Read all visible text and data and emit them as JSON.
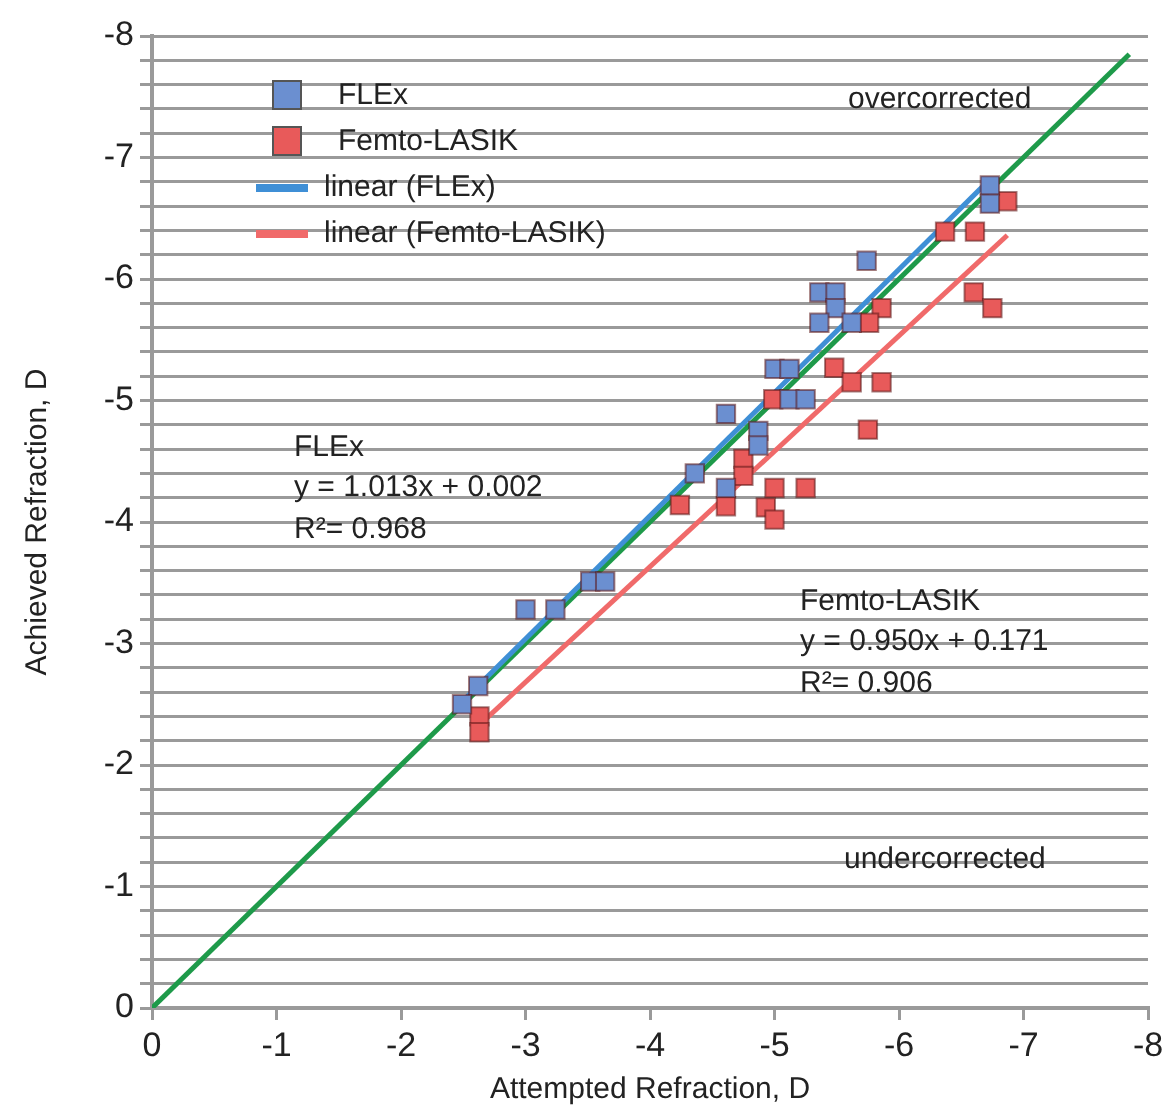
{
  "chart_data": {
    "type": "scatter",
    "xlabel": "Attempted Refraction, D",
    "ylabel": "Achieved Refraction, D",
    "xlim": [
      0,
      -8
    ],
    "xticks": [
      0,
      -1,
      -2,
      -3,
      -4,
      -5,
      -6,
      -7,
      -8
    ],
    "ylim": [
      0,
      -8
    ],
    "yticks": [
      0,
      {
        "value": -0.2,
        "label": null
      },
      {
        "value": -0.4,
        "label": null
      },
      {
        "value": -0.6,
        "label": null
      },
      {
        "value": -0.8,
        "label": null
      },
      -1,
      {
        "value": -1.2,
        "label": null
      },
      {
        "value": -1.4,
        "label": null
      },
      {
        "value": -1.6,
        "label": null
      },
      {
        "value": -1.8,
        "label": null
      },
      -2,
      {
        "value": -2.2,
        "label": null
      },
      {
        "value": -2.4,
        "label": null
      },
      {
        "value": -2.6,
        "label": null
      },
      {
        "value": -2.8,
        "label": null
      },
      -3,
      {
        "value": -3.2,
        "label": null
      },
      {
        "value": -3.4,
        "label": null
      },
      {
        "value": -3.6,
        "label": null
      },
      {
        "value": -3.8,
        "label": null
      },
      -4,
      {
        "value": -4.2,
        "label": null
      },
      {
        "value": -4.4,
        "label": null
      },
      {
        "value": -4.6,
        "label": null
      },
      {
        "value": -4.8,
        "label": null
      },
      -5,
      {
        "value": -5.2,
        "label": null
      },
      {
        "value": -5.4,
        "label": null
      },
      {
        "value": -5.6,
        "label": null
      },
      {
        "value": -5.8,
        "label": null
      },
      -6,
      {
        "value": -6.2,
        "label": null
      },
      {
        "value": -6.4,
        "label": null
      },
      {
        "value": -6.6,
        "label": null
      },
      {
        "value": -6.8,
        "label": null
      },
      -7,
      {
        "value": -7.2,
        "label": null
      },
      {
        "value": -7.4,
        "label": null
      },
      {
        "value": -7.6,
        "label": null
      },
      {
        "value": -7.8,
        "label": null
      },
      -8
    ],
    "grid": "y",
    "legend": "top left",
    "series": [
      {
        "name": "FLEx",
        "type": "scatter",
        "marker": "square",
        "color": "#6b8fd0",
        "x": [
          -6.73,
          -6.73,
          -5.74,
          -5.36,
          -5.49,
          -5.49,
          -5.36,
          -5.62,
          -5.0,
          -5.12,
          -5.12,
          -5.25,
          -4.61,
          -4.87,
          -4.87,
          -4.36,
          -4.61,
          -3.52,
          -3.64,
          -3.0,
          -3.24,
          -2.62,
          -2.49
        ],
        "values": [
          -6.77,
          -6.62,
          -6.15,
          -5.89,
          -5.89,
          -5.76,
          -5.64,
          -5.64,
          -5.26,
          -5.26,
          -5.01,
          -5.01,
          -4.89,
          -4.75,
          -4.63,
          -4.4,
          -4.28,
          -3.51,
          -3.51,
          -3.28,
          -3.28,
          -2.65,
          -2.5
        ]
      },
      {
        "name": "Femto-LASIK",
        "type": "scatter",
        "marker": "square",
        "color": "#e85a5a",
        "x": [
          -6.37,
          -6.61,
          -6.87,
          -6.6,
          -6.75,
          -5.86,
          -5.76,
          -5.48,
          -5.62,
          -5.86,
          -4.99,
          -5.75,
          -4.75,
          -4.75,
          -4.24,
          -4.61,
          -5.0,
          -5.25,
          -4.93,
          -5.0,
          -2.63,
          -2.63
        ],
        "values": [
          -6.39,
          -6.39,
          -6.64,
          -5.89,
          -5.76,
          -5.76,
          -5.64,
          -5.27,
          -5.15,
          -5.15,
          -5.01,
          -4.76,
          -4.52,
          -4.38,
          -4.14,
          -4.13,
          -4.28,
          -4.28,
          -4.12,
          -4.02,
          -2.4,
          -2.27
        ]
      },
      {
        "name": "linear (FLEx)",
        "type": "line",
        "marker": "none",
        "color": "#3f8fd6",
        "x": [
          -2.5,
          -6.73
        ],
        "values": [
          -2.53,
          -6.82
        ]
      },
      {
        "name": "linear (Femto-LASIK)",
        "type": "line",
        "marker": "none",
        "color": "#f06a6a",
        "x": [
          -2.63,
          -6.87
        ],
        "values": [
          -2.33,
          -6.36
        ]
      },
      {
        "type": "line",
        "marker": "none",
        "color": "#1e9a4a",
        "x": [
          0,
          -7.85
        ],
        "values": [
          0,
          -7.85
        ]
      }
    ],
    "annotations": [
      "overcorrected",
      "undercorrected",
      "FLEx\ny = 1.013x + 0.002\nR²= 0.968",
      "Femto-LASIK\ny = 0.950x + 0.171\nR²= 0.906"
    ]
  }
}
